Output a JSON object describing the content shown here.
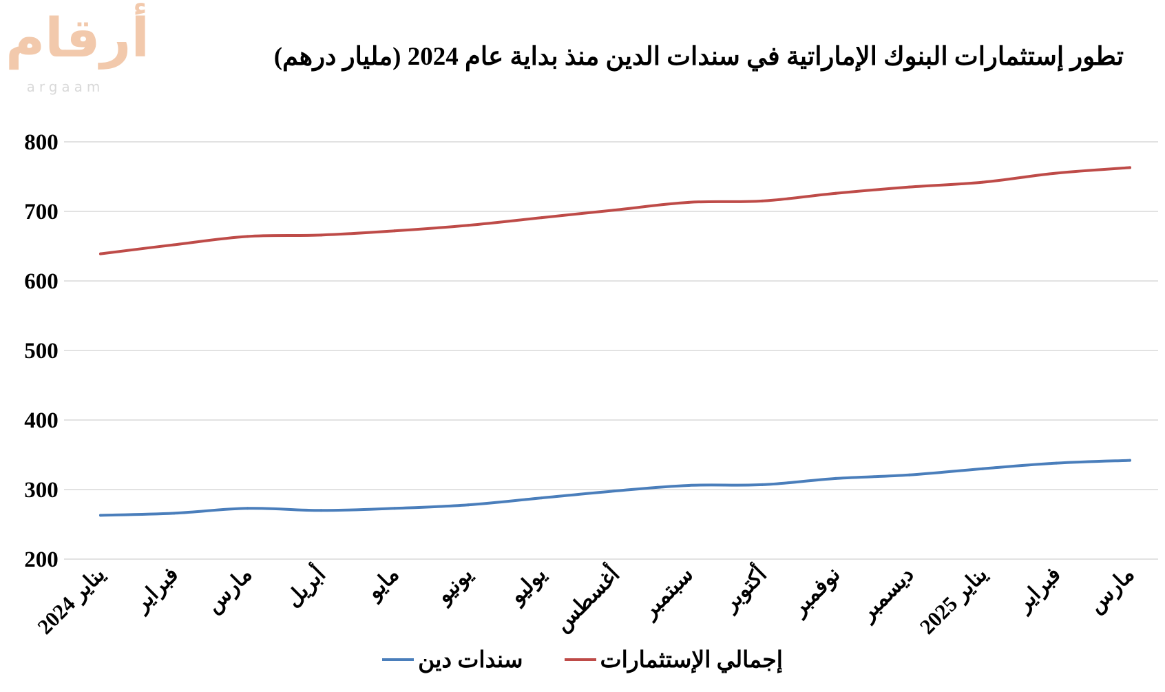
{
  "logo": {
    "arabic": "أرقام",
    "latin": "argaam"
  },
  "chart_data": {
    "type": "line",
    "title": "تطور إستثمارات البنوك الإماراتية في سندات الدين منذ بداية عام 2024 (مليار درهم)",
    "xlabel": "",
    "ylabel": "",
    "categories": [
      "يناير 2024",
      "فبراير",
      "مارس",
      "أبريل",
      "مايو",
      "يونيو",
      "يوليو",
      "أغسطس",
      "سبتمبر",
      "أكتوبر",
      "نوفمبر",
      "ديسمبر",
      "يناير 2025",
      "فبراير",
      "مارس"
    ],
    "ylim": [
      200,
      800
    ],
    "yticks": [
      "200",
      "300",
      "400",
      "500",
      "600",
      "700",
      "800"
    ],
    "grid": true,
    "legend_position": "bottom",
    "series": [
      {
        "name": "سندات دين",
        "color": "#4a7ebb",
        "values": [
          263,
          266,
          273,
          270,
          273,
          278,
          288,
          298,
          306,
          307,
          316,
          321,
          330,
          338,
          342
        ]
      },
      {
        "name": "إجمالي الإستثمارات",
        "color": "#be4b48",
        "values": [
          639,
          652,
          664,
          666,
          672,
          680,
          691,
          702,
          713,
          715,
          726,
          735,
          742,
          755,
          763
        ]
      }
    ]
  }
}
